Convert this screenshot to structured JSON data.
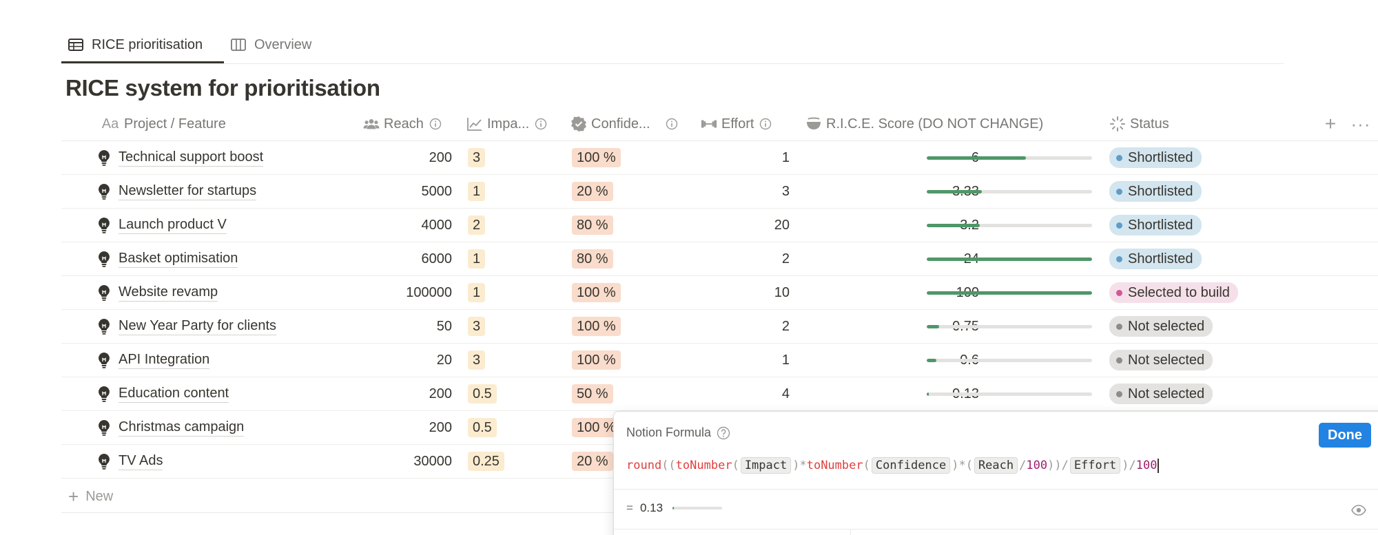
{
  "tabs": [
    {
      "label": "RICE prioritisation",
      "icon": "table-icon",
      "active": true
    },
    {
      "label": "Overview",
      "icon": "board-icon",
      "active": false
    }
  ],
  "title": "RICE system for prioritisation",
  "columns": {
    "name": "Project / Feature",
    "reach": "Reach",
    "impact": "Impa...",
    "confidence": "Confide...",
    "effort": "Effort",
    "score": "R.I.C.E. Score (DO NOT CHANGE)",
    "status": "Status"
  },
  "rows": [
    {
      "name": "Technical support boost",
      "reach": "200",
      "impact": "3",
      "confidence": "100 %",
      "effort": "1",
      "score": "6",
      "bar": 0.6,
      "status": "Shortlisted",
      "status_color": "#5e9dc9",
      "status_bg": "#d3e5ef"
    },
    {
      "name": "Newsletter for startups",
      "reach": "5000",
      "impact": "1",
      "confidence": "20 %",
      "effort": "3",
      "score": "3.33",
      "bar": 0.333,
      "status": "Shortlisted",
      "status_color": "#5e9dc9",
      "status_bg": "#d3e5ef"
    },
    {
      "name": "Launch product V",
      "reach": "4000",
      "impact": "2",
      "confidence": "80 %",
      "effort": "20",
      "score": "3.2",
      "bar": 0.32,
      "status": "Shortlisted",
      "status_color": "#5e9dc9",
      "status_bg": "#d3e5ef"
    },
    {
      "name": "Basket optimisation",
      "reach": "6000",
      "impact": "1",
      "confidence": "80 %",
      "effort": "2",
      "score": "24",
      "bar": 1.0,
      "status": "Shortlisted",
      "status_color": "#5e9dc9",
      "status_bg": "#d3e5ef"
    },
    {
      "name": "Website revamp",
      "reach": "100000",
      "impact": "1",
      "confidence": "100 %",
      "effort": "10",
      "score": "100",
      "bar": 1.0,
      "status": "Selected to build",
      "status_color": "#d15796",
      "status_bg": "#f5e0e9"
    },
    {
      "name": "New Year Party for clients",
      "reach": "50",
      "impact": "3",
      "confidence": "100 %",
      "effort": "2",
      "score": "0.75",
      "bar": 0.075,
      "status": "Not selected",
      "status_color": "#8c8c8c",
      "status_bg": "#e3e2e0"
    },
    {
      "name": "API Integration",
      "reach": "20",
      "impact": "3",
      "confidence": "100 %",
      "effort": "1",
      "score": "0.6",
      "bar": 0.06,
      "status": "Not selected",
      "status_color": "#8c8c8c",
      "status_bg": "#e3e2e0"
    },
    {
      "name": "Education content",
      "reach": "200",
      "impact": "0.5",
      "confidence": "50 %",
      "effort": "4",
      "score": "0.13",
      "bar": 0.013,
      "status": "Not selected",
      "status_color": "#8c8c8c",
      "status_bg": "#e3e2e0"
    },
    {
      "name": "Christmas campaign",
      "reach": "200",
      "impact": "0.5",
      "confidence": "100 %",
      "effort": "",
      "score": "",
      "bar": null,
      "status": "",
      "status_color": "",
      "status_bg": ""
    },
    {
      "name": "TV Ads",
      "reach": "30000",
      "impact": "0.25",
      "confidence": "20 %",
      "effort": "",
      "score": "",
      "bar": null,
      "status": "",
      "status_color": "",
      "status_bg": ""
    }
  ],
  "new_label": "New",
  "formula_popup": {
    "title": "Notion Formula",
    "done_label": "Done",
    "result": "0.13",
    "result_bar": 0.013,
    "tokens": [
      {
        "t": "fn",
        "v": "round"
      },
      {
        "t": "p",
        "v": "(("
      },
      {
        "t": "fn",
        "v": "toNumber"
      },
      {
        "t": "p",
        "v": "("
      },
      {
        "t": "prop",
        "v": "Impact"
      },
      {
        "t": "p",
        "v": ")*"
      },
      {
        "t": "fn",
        "v": "toNumber"
      },
      {
        "t": "p",
        "v": "("
      },
      {
        "t": "prop",
        "v": "Confidence"
      },
      {
        "t": "p",
        "v": ")*("
      },
      {
        "t": "prop",
        "v": "Reach"
      },
      {
        "t": "p",
        "v": "/"
      },
      {
        "t": "num",
        "v": "100"
      },
      {
        "t": "p",
        "v": "))/"
      },
      {
        "t": "prop",
        "v": "Effort"
      },
      {
        "t": "p",
        "v": ")/"
      },
      {
        "t": "num",
        "v": "100"
      }
    ]
  },
  "colors": {
    "accent": "#2383e2",
    "bar_fill": "#4f9768",
    "impact_tag": "#fbecd0",
    "confidence_tag": "#f9dccb"
  }
}
